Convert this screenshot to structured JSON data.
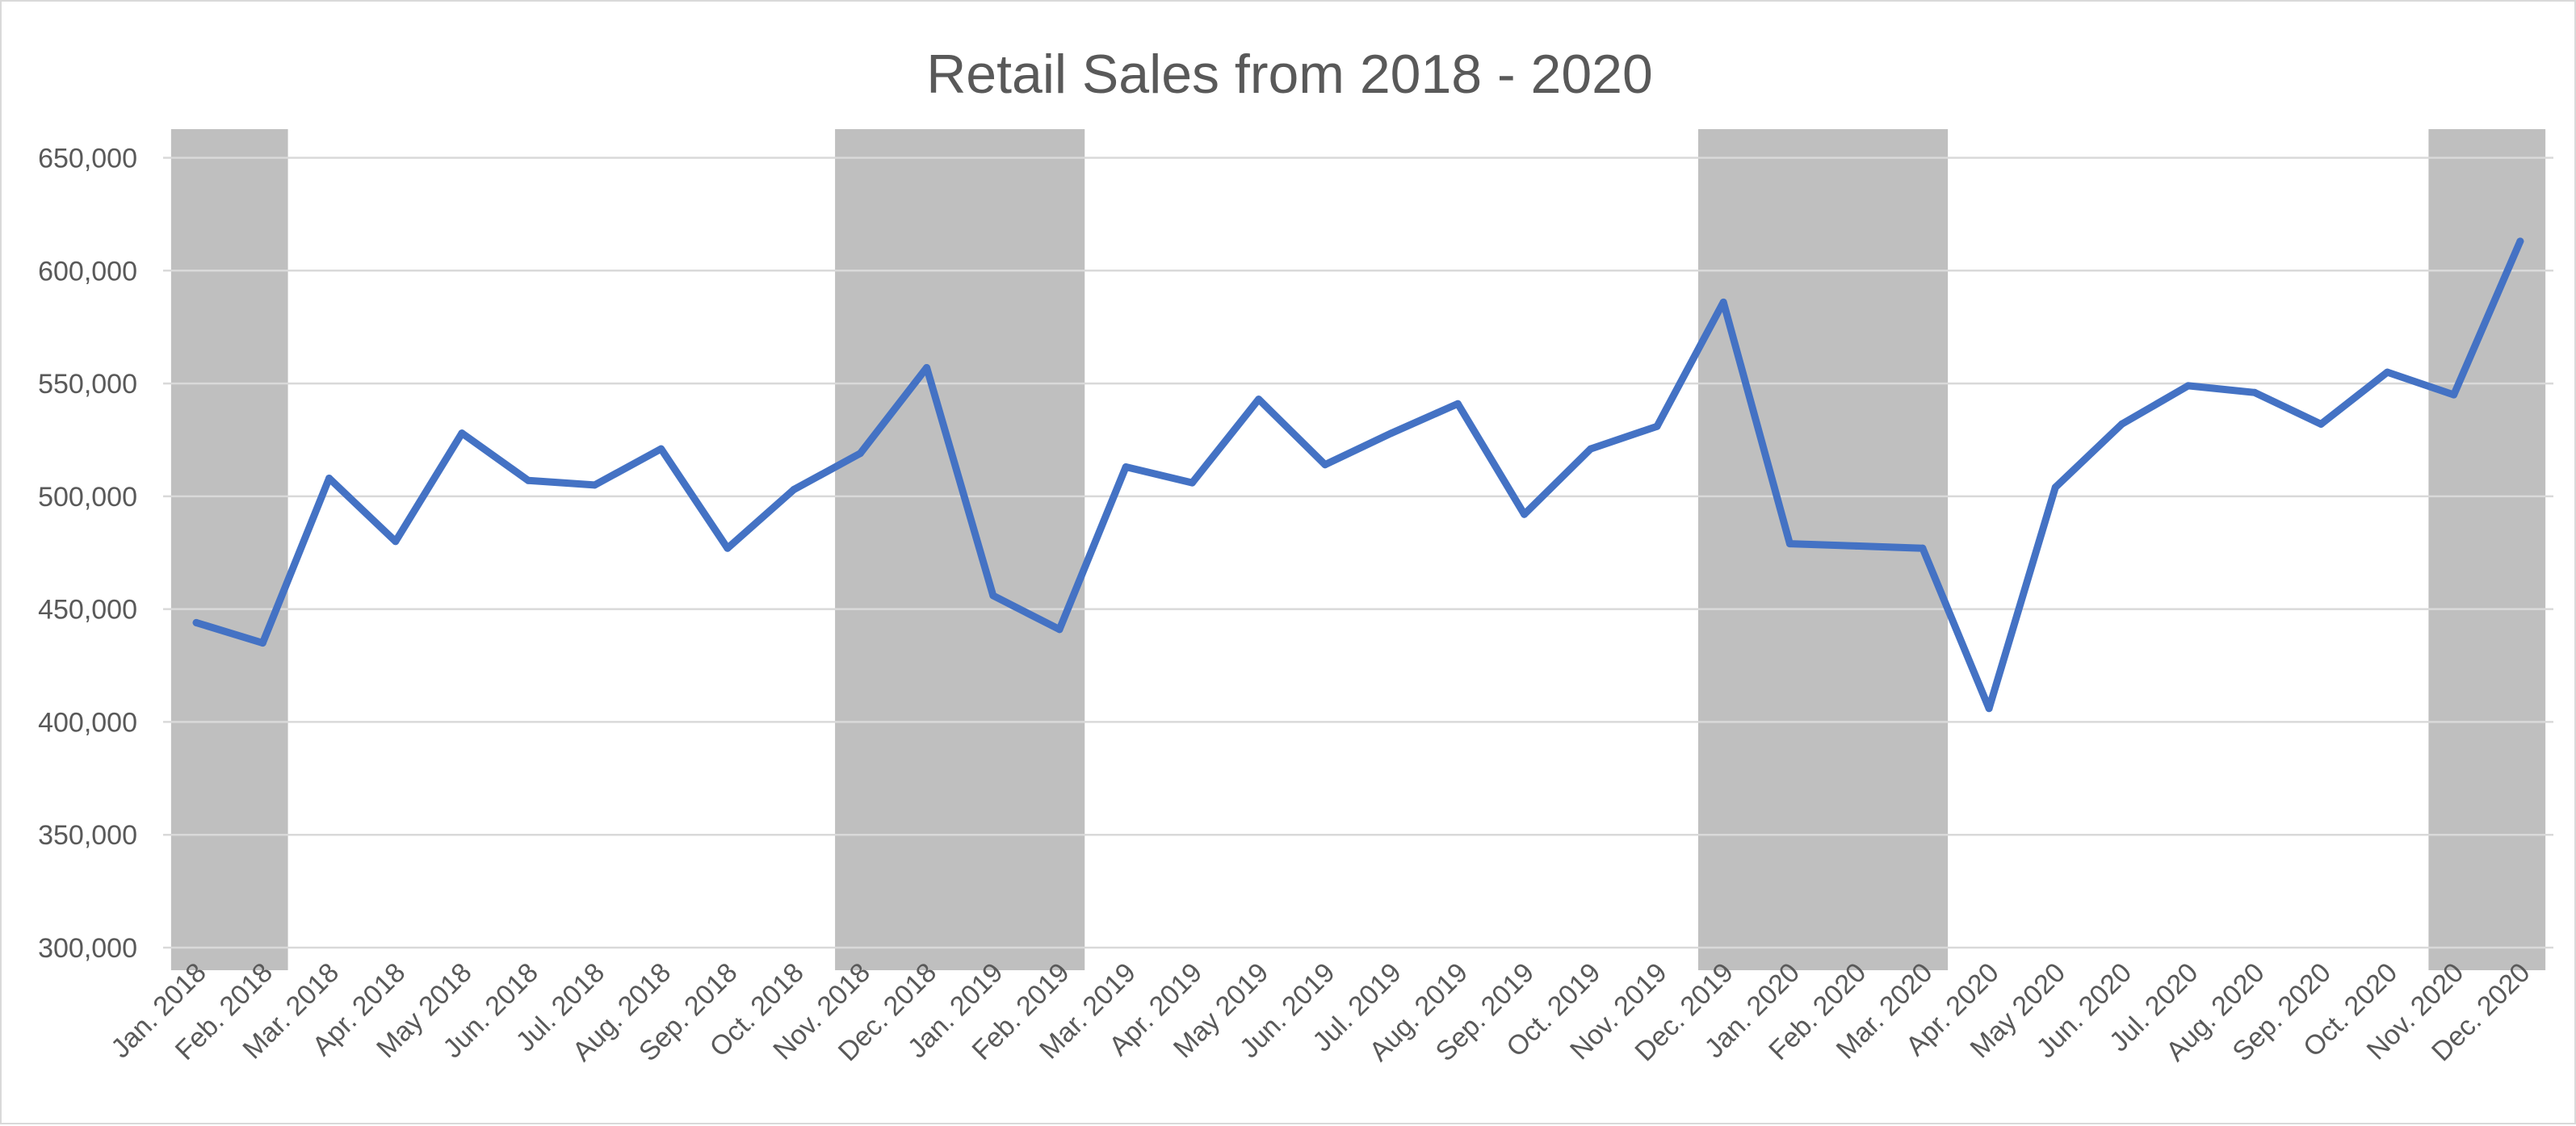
{
  "chart_data": {
    "type": "line",
    "title": "Retail Sales from 2018 - 2020",
    "xlabel": "",
    "ylabel": "",
    "ylim": [
      300000,
      650000
    ],
    "y_ticks": [
      300000,
      350000,
      400000,
      450000,
      500000,
      550000,
      600000,
      650000
    ],
    "y_tick_labels": [
      "300,000",
      "350,000",
      "400,000",
      "450,000",
      "500,000",
      "550,000",
      "600,000",
      "650,000"
    ],
    "grid": "horizontal",
    "legend": "none",
    "line_color": "#4472c4",
    "shade_color": "#bfbfbf",
    "categories": [
      "Jan. 2018",
      "Feb. 2018",
      "Mar. 2018",
      "Apr. 2018",
      "May 2018",
      "Jun. 2018",
      "Jul. 2018",
      "Aug. 2018",
      "Sep. 2018",
      "Oct. 2018",
      "Nov. 2018",
      "Dec. 2018",
      "Jan. 2019",
      "Feb. 2019",
      "Mar. 2019",
      "Apr. 2019",
      "May 2019",
      "Jun. 2019",
      "Jul. 2019",
      "Aug. 2019",
      "Sep. 2019",
      "Oct. 2019",
      "Nov. 2019",
      "Dec. 2019",
      "Jan. 2020",
      "Feb. 2020",
      "Mar. 2020",
      "Apr. 2020",
      "May 2020",
      "Jun. 2020",
      "Jul. 2020",
      "Aug. 2020",
      "Sep. 2020",
      "Oct. 2020",
      "Nov. 2020",
      "Dec. 2020"
    ],
    "values": [
      444000,
      435000,
      508000,
      480000,
      528000,
      507000,
      505000,
      521000,
      477000,
      503000,
      519000,
      557000,
      456000,
      441000,
      513000,
      506000,
      543000,
      514000,
      528000,
      541000,
      492000,
      521000,
      531000,
      586000,
      479000,
      478000,
      477000,
      406000,
      504000,
      532000,
      549000,
      546000,
      532000,
      555000,
      545000,
      613000
    ],
    "shaded_ranges": [
      {
        "from": "Jan. 2018",
        "to": "Feb. 2018"
      },
      {
        "from": "Nov. 2018",
        "to": "Feb. 2019"
      },
      {
        "from": "Dec. 2019",
        "to": "Mar. 2020"
      },
      {
        "from": "Nov. 2020",
        "to": "Dec. 2020"
      }
    ]
  }
}
